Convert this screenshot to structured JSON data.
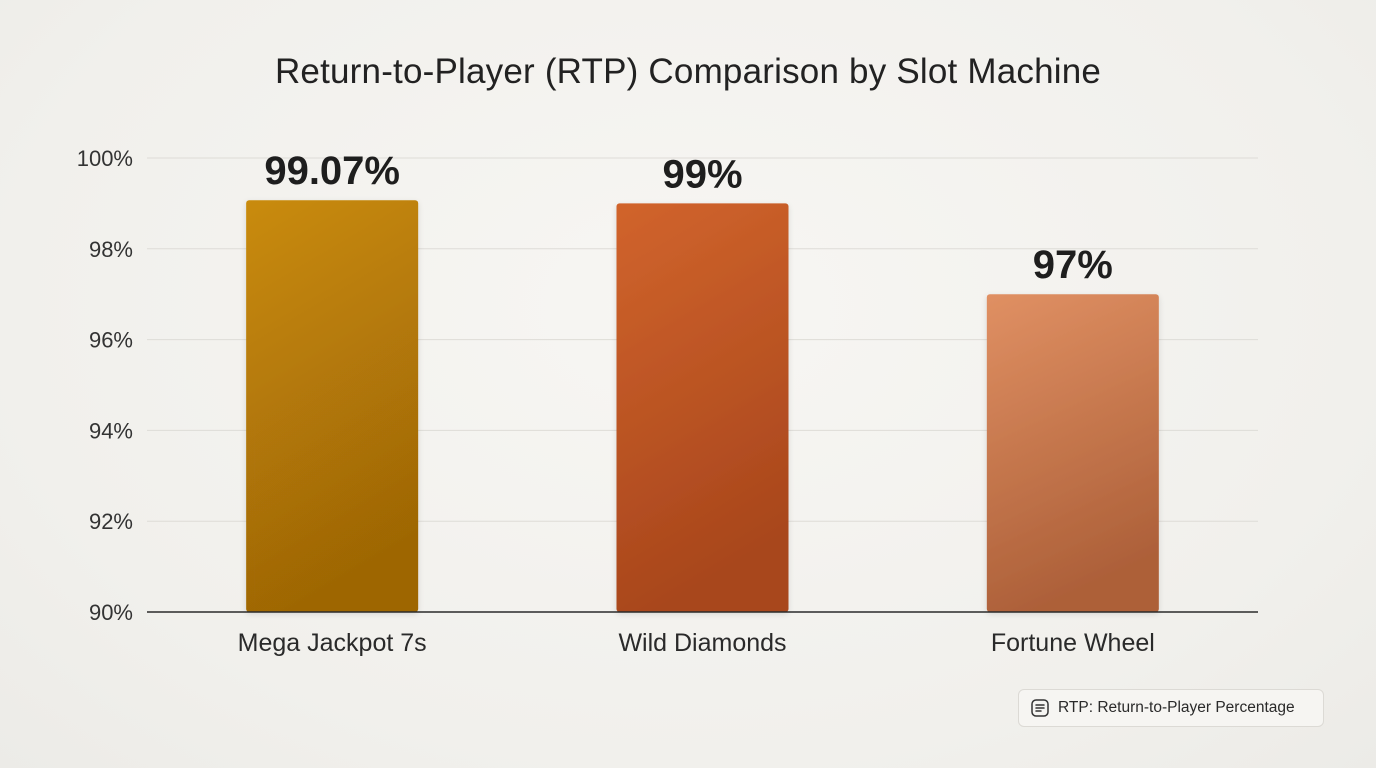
{
  "chart_data": {
    "type": "bar",
    "title": "Return-to-Player (RTP) Comparison by Slot Machine",
    "xlabel": "",
    "ylabel": "",
    "categories": [
      "Mega Jackpot 7s",
      "Wild Diamonds",
      "Fortune Wheel"
    ],
    "values": [
      99.07,
      99,
      97
    ],
    "data_labels": [
      "99.07%",
      "99%",
      "97%"
    ],
    "ylim": [
      90,
      100
    ],
    "yticks": [
      90,
      92,
      94,
      96,
      98,
      100
    ],
    "ytick_labels": [
      "90%",
      "92%",
      "94%",
      "96%",
      "98%",
      "100%"
    ],
    "grid": true,
    "bar_colors": [
      {
        "top": "#c98b08",
        "bottom": "#9e6606"
      },
      {
        "top": "#d1642c",
        "bottom": "#a8461c"
      },
      {
        "top": "#e09063",
        "bottom": "#ad6039"
      }
    ]
  },
  "note": {
    "icon": "note-icon",
    "text": "RTP: Return-to-Player Percentage"
  }
}
